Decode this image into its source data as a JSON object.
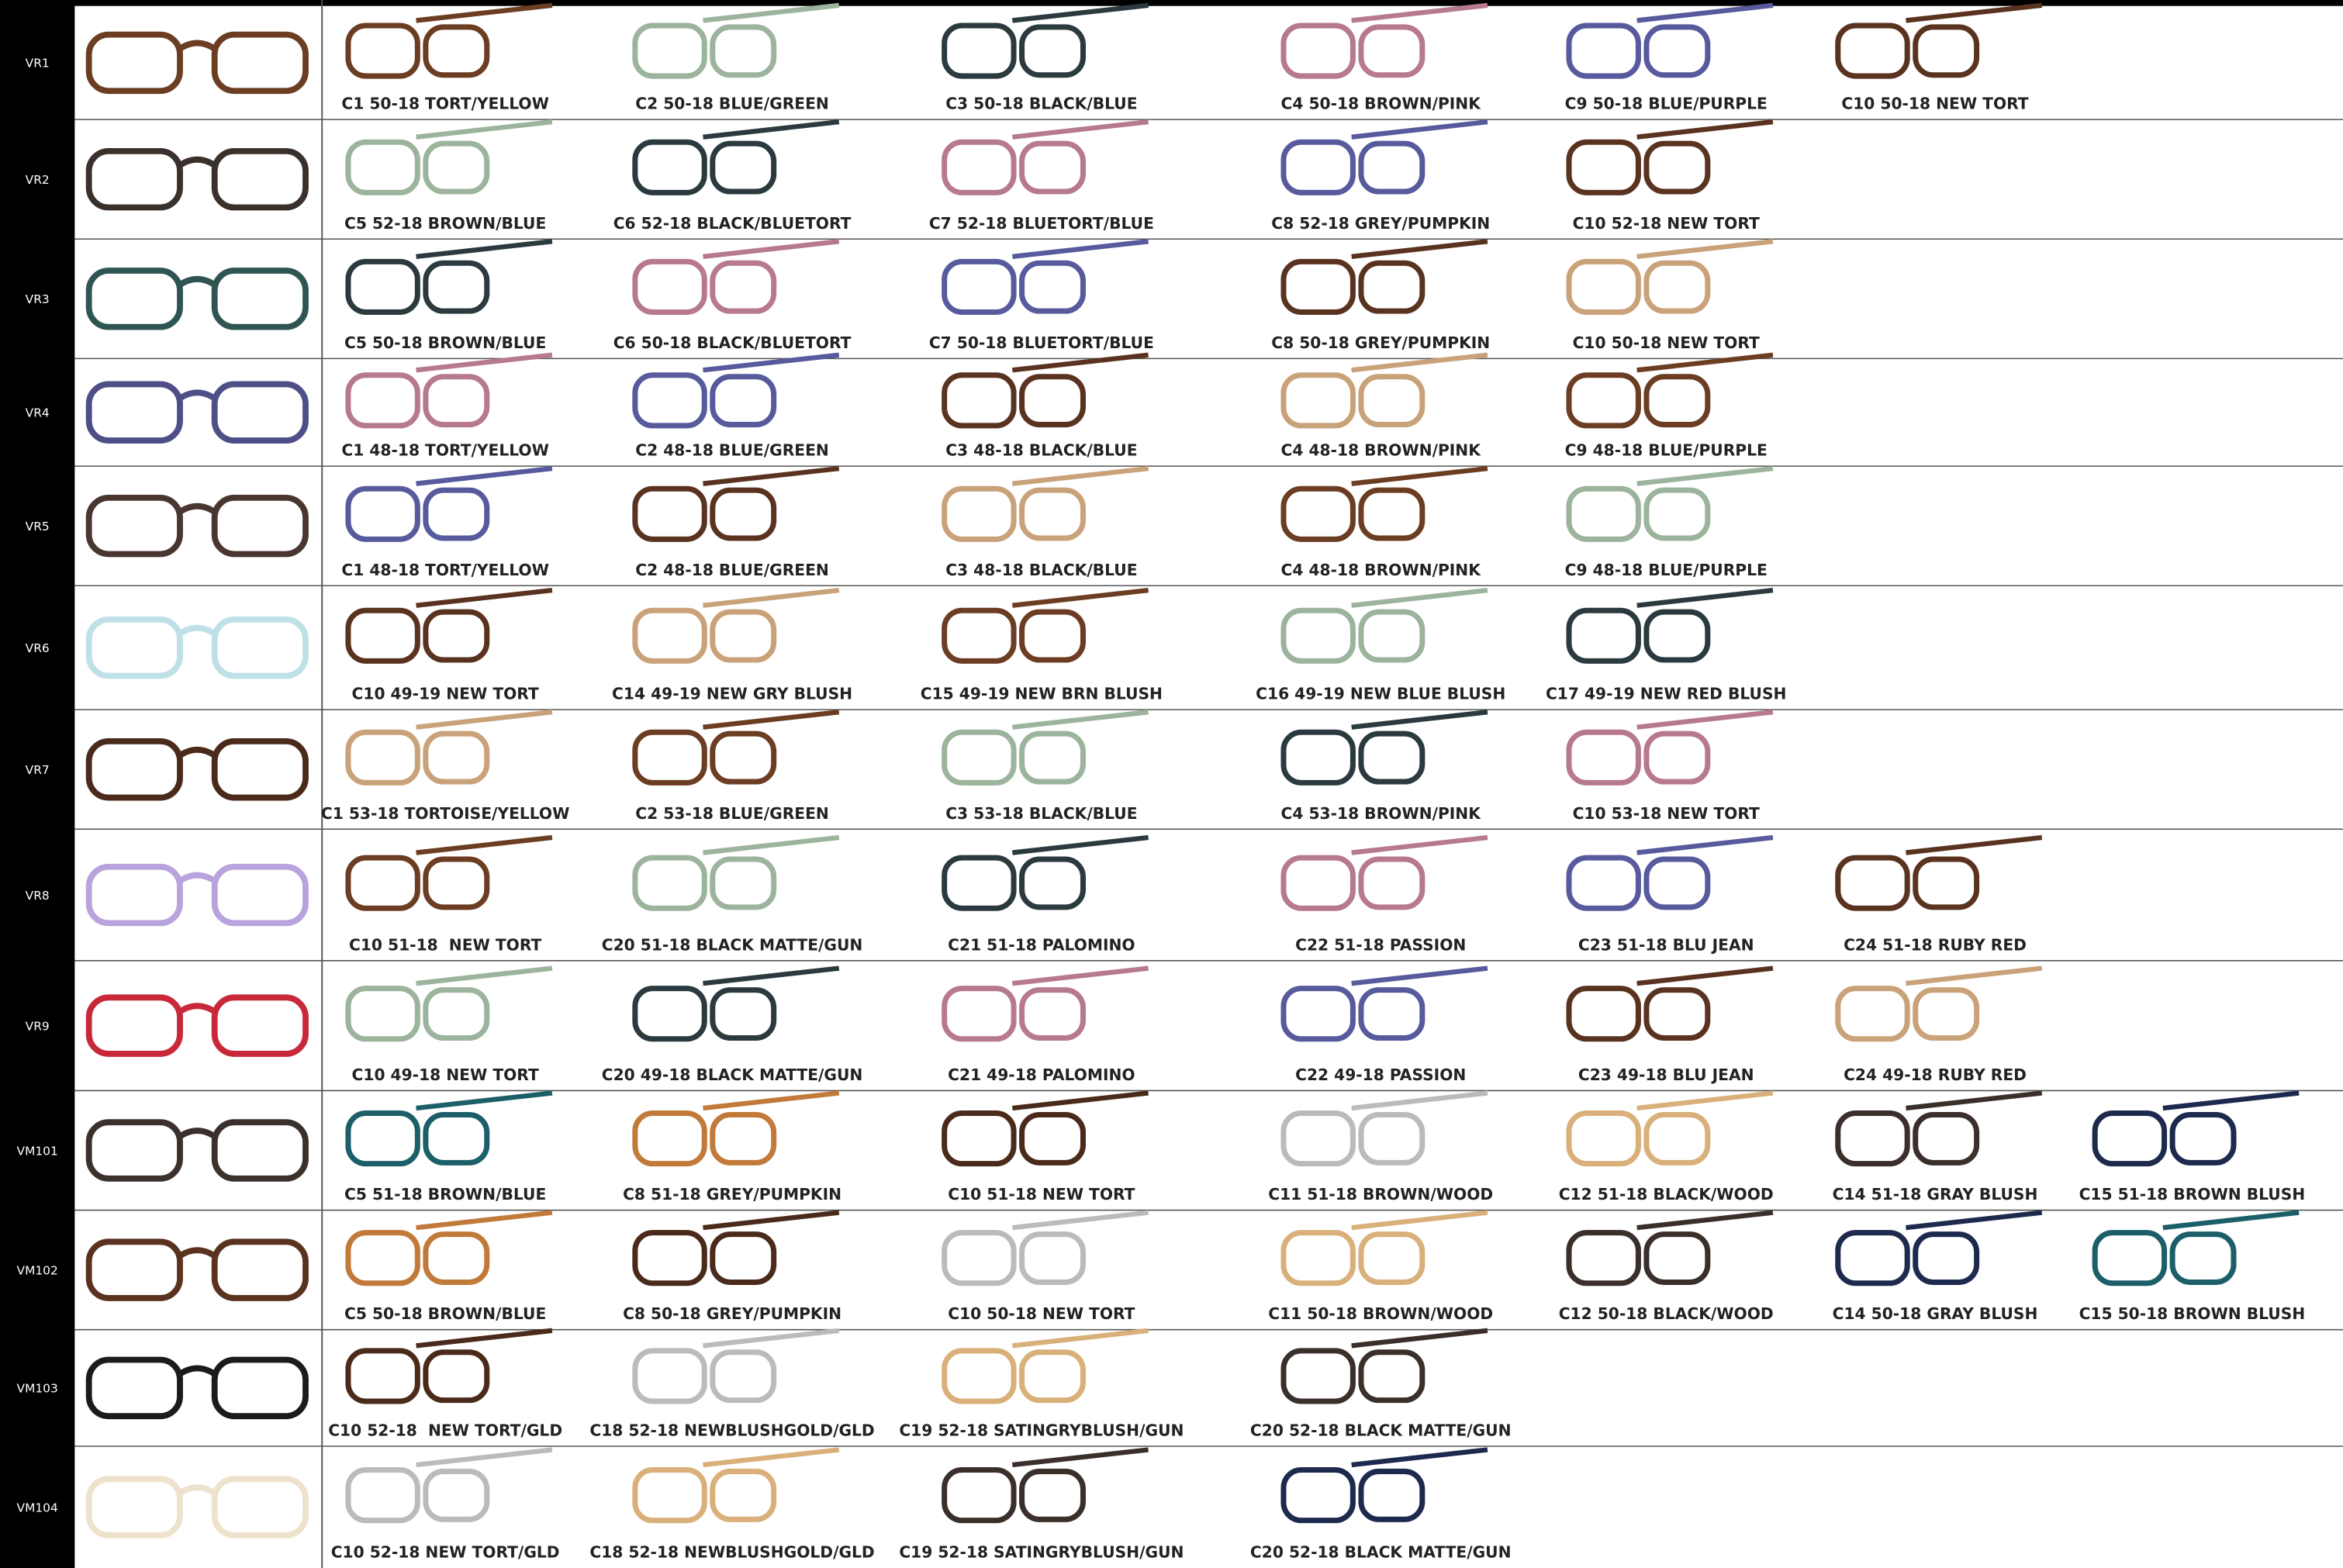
{
  "rows": [
    {
      "model": "VR1",
      "variants": [
        "C1 50-18 TORT/YELLOW",
        "C2 50-18 BLUE/GREEN",
        "C3 50-18 BLACK/BLUE",
        "C4 50-18 BROWN/PINK",
        "C9 50-18 BLUE/PURPLE",
        "C10 50-18 NEW TORT"
      ]
    },
    {
      "model": "VR2",
      "variants": [
        "C5 52-18 BROWN/BLUE",
        "C6 52-18 BLACK/BLUETORT",
        "C7 52-18 BLUETORT/BLUE",
        "C8 52-18 GREY/PUMPKIN",
        "C10 52-18 NEW TORT"
      ]
    },
    {
      "model": "VR3",
      "variants": [
        "C5 50-18 BROWN/BLUE",
        "C6 50-18 BLACK/BLUETORT",
        "C7 50-18 BLUETORT/BLUE",
        "C8 50-18 GREY/PUMPKIN",
        "C10 50-18 NEW TORT"
      ]
    },
    {
      "model": "VR4",
      "variants": [
        "C1 48-18 TORT/YELLOW",
        "C2 48-18 BLUE/GREEN",
        "C3 48-18 BLACK/BLUE",
        "C4 48-18 BROWN/PINK",
        "C9 48-18 BLUE/PURPLE"
      ]
    },
    {
      "model": "VR5",
      "variants": [
        "C1 48-18 TORT/YELLOW",
        "C2 48-18 BLUE/GREEN",
        "C3 48-18 BLACK/BLUE",
        "C4 48-18 BROWN/PINK",
        "C9 48-18 BLUE/PURPLE"
      ]
    },
    {
      "model": "VR6",
      "variants": [
        "C10 49-19 NEW TORT",
        "C14 49-19 NEW GRY BLUSH",
        "C15 49-19 NEW BRN BLUSH",
        "C16 49-19 NEW BLUE BLUSH",
        "C17 49-19 NEW RED BLUSH"
      ]
    },
    {
      "model": "VR7",
      "variants": [
        "C1 53-18 TORTOISE/YELLOW",
        "C2 53-18 BLUE/GREEN",
        "C3 53-18 BLACK/BLUE",
        "C4 53-18 BROWN/PINK",
        "C10 53-18 NEW TORT"
      ]
    },
    {
      "model": "VR8",
      "variants": [
        "C10 51-18  NEW TORT",
        "C20 51-18 BLACK MATTE/GUN",
        "C21 51-18 PALOMINO",
        "C22 51-18 PASSION",
        "C23 51-18 BLU JEAN",
        "C24 51-18 RUBY RED"
      ]
    },
    {
      "model": "VR9",
      "variants": [
        "C10 49-18 NEW TORT",
        "C20 49-18 BLACK MATTE/GUN",
        "C21 49-18 PALOMINO",
        "C22 49-18 PASSION",
        "C23 49-18 BLU JEAN",
        "C24 49-18 RUBY RED"
      ]
    },
    {
      "model": "VM101",
      "variants": [
        "C5 51-18 BROWN/BLUE",
        "C8 51-18 GREY/PUMPKIN",
        "C10 51-18 NEW TORT",
        "C11 51-18 BROWN/WOOD",
        "C12 51-18 BLACK/WOOD",
        "C14 51-18 GRAY BLUSH",
        "C15 51-18 BROWN BLUSH"
      ]
    },
    {
      "model": "VM102",
      "variants": [
        "C5 50-18 BROWN/BLUE",
        "C8 50-18 GREY/PUMPKIN",
        "C10 50-18 NEW TORT",
        "C11 50-18 BROWN/WOOD",
        "C12 50-18 BLACK/WOOD",
        "C14 50-18 GRAY BLUSH",
        "C15 50-18 BROWN BLUSH"
      ]
    },
    {
      "model": "VM103",
      "variants": [
        "C10 52-18  NEW TORT/GLD",
        "C18 52-18 NEWBLUSHGOLD/GLD",
        "C19 52-18 SATINGRYBLUSH/GUN",
        "C20 52-18 BLACK MATTE/GUN"
      ]
    },
    {
      "model": "VM104",
      "variants": [
        "C10 52-18 NEW TORT/GLD",
        "C18 52-18 NEWBLUSHGOLD/GLD",
        "C19 52-18 SATINGRYBLUSH/GUN",
        "C20 52-18 BLACK MATTE/GUN"
      ]
    }
  ]
}
